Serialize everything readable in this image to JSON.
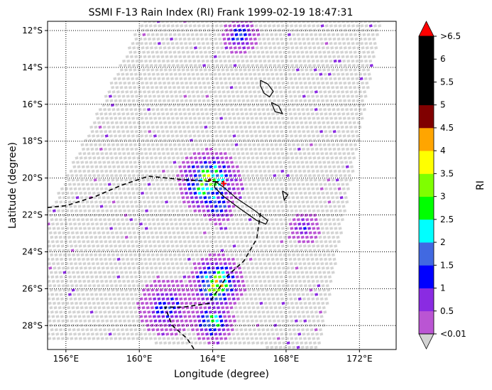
{
  "title": "SSMI F-13 Rain Index (RI) Frank 1999-02-19 18:47:31",
  "xlabel": "Longitude (degree)",
  "ylabel": "Latitude (degree)",
  "colorbar": {
    "label": "RI",
    "tick_labels": [
      ">6.5",
      "6",
      "5.5",
      "5",
      "4.5",
      "4",
      "3.5",
      "3",
      "2.5",
      "2",
      "1.5",
      "1",
      "0.5",
      "<0.01"
    ],
    "boundaries": [
      0.01,
      0.5,
      1,
      1.5,
      2,
      2.5,
      3,
      3.5,
      4,
      4.5,
      5,
      5.5,
      6,
      6.5
    ],
    "colors": [
      "#ba55d3",
      "#8a2be2",
      "#0000ff",
      "#4169e1",
      "#00ffff",
      "#00ff00",
      "#7fff00",
      "#ffff00",
      "#ffa500",
      "#800000",
      "#000000",
      "#000000",
      "#000000"
    ],
    "over_color": "#ff0000",
    "under_color": "#d3d3d3"
  },
  "map": {
    "lon_range": [
      155,
      174
    ],
    "lat_range": [
      -29.3,
      -11.5
    ],
    "lon_ticks": [
      {
        "value": 156,
        "label": "156°E"
      },
      {
        "value": 160,
        "label": "160°E"
      },
      {
        "value": 164,
        "label": "164°E"
      },
      {
        "value": 168,
        "label": "168°E"
      },
      {
        "value": 172,
        "label": "172°E"
      }
    ],
    "lat_ticks": [
      {
        "value": -12,
        "label": "12°S"
      },
      {
        "value": -14,
        "label": "14°S"
      },
      {
        "value": -16,
        "label": "16°S"
      },
      {
        "value": -18,
        "label": "18°S"
      },
      {
        "value": -20,
        "label": "20°S"
      },
      {
        "value": -22,
        "label": "22°S"
      },
      {
        "value": -24,
        "label": "24°S"
      },
      {
        "value": -26,
        "label": "26°S"
      },
      {
        "value": -28,
        "label": "28°S"
      }
    ],
    "grid": true,
    "swath_corners": [
      [
        160.1,
        -11.5
      ],
      [
        173.2,
        -11.5
      ],
      [
        169.8,
        -29.3
      ],
      [
        155.0,
        -28.7
      ],
      [
        155.0,
        -22.0
      ]
    ],
    "rain_cells": [
      {
        "lon": 163.8,
        "lat": -20.2,
        "r": 1.8,
        "peak": 3.3
      },
      {
        "lon": 164.3,
        "lat": -21.6,
        "r": 0.9,
        "peak": 1.8
      },
      {
        "lon": 164.2,
        "lat": -25.7,
        "r": 1.6,
        "peak": 3.2
      },
      {
        "lon": 164.0,
        "lat": -27.8,
        "r": 1.2,
        "peak": 2.4
      },
      {
        "lon": 165.5,
        "lat": -12.3,
        "r": 1.0,
        "peak": 1.6
      },
      {
        "lon": 161.5,
        "lat": -27.0,
        "r": 1.6,
        "peak": 1.2
      },
      {
        "lon": 169.0,
        "lat": -22.7,
        "r": 0.9,
        "peak": 0.9
      }
    ],
    "storm_center": {
      "lon": 164.6,
      "lat": -20.3
    },
    "coastlines": [
      [
        [
          164.15,
          -20.2
        ],
        [
          164.6,
          -20.5
        ],
        [
          165.3,
          -21.1
        ],
        [
          166.2,
          -21.7
        ],
        [
          167.0,
          -22.3
        ],
        [
          166.9,
          -22.5
        ],
        [
          166.4,
          -22.3
        ],
        [
          165.4,
          -21.6
        ],
        [
          164.6,
          -21.0
        ],
        [
          164.1,
          -20.5
        ],
        [
          164.15,
          -20.2
        ]
      ],
      [
        [
          166.6,
          -14.7
        ],
        [
          167.0,
          -14.9
        ],
        [
          167.3,
          -15.3
        ],
        [
          167.1,
          -15.6
        ],
        [
          166.8,
          -15.4
        ],
        [
          166.6,
          -15.0
        ],
        [
          166.6,
          -14.7
        ]
      ],
      [
        [
          167.2,
          -15.9
        ],
        [
          167.6,
          -16.1
        ],
        [
          167.8,
          -16.5
        ],
        [
          167.4,
          -16.4
        ],
        [
          167.2,
          -15.9
        ]
      ],
      [
        [
          167.8,
          -20.7
        ],
        [
          168.1,
          -20.9
        ],
        [
          167.9,
          -21.2
        ],
        [
          167.8,
          -20.7
        ]
      ]
    ],
    "boundaries_dashed": [
      [
        [
          155.0,
          -21.6
        ],
        [
          156.0,
          -21.5
        ],
        [
          157.6,
          -21.0
        ],
        [
          159.0,
          -20.4
        ],
        [
          160.5,
          -19.9
        ],
        [
          162.5,
          -20.1
        ],
        [
          164.1,
          -20.2
        ]
      ],
      [
        [
          164.1,
          -20.2
        ],
        [
          164.6,
          -20.2
        ]
      ],
      [
        [
          166.6,
          -21.9
        ],
        [
          166.4,
          -23.3
        ],
        [
          165.7,
          -24.5
        ],
        [
          164.8,
          -25.3
        ],
        [
          164.2,
          -26.2
        ],
        [
          163.8,
          -26.8
        ],
        [
          162.4,
          -27.0
        ],
        [
          161.4,
          -27.0
        ],
        [
          161.8,
          -28.0
        ],
        [
          162.6,
          -28.7
        ],
        [
          163.0,
          -29.3
        ]
      ]
    ]
  }
}
